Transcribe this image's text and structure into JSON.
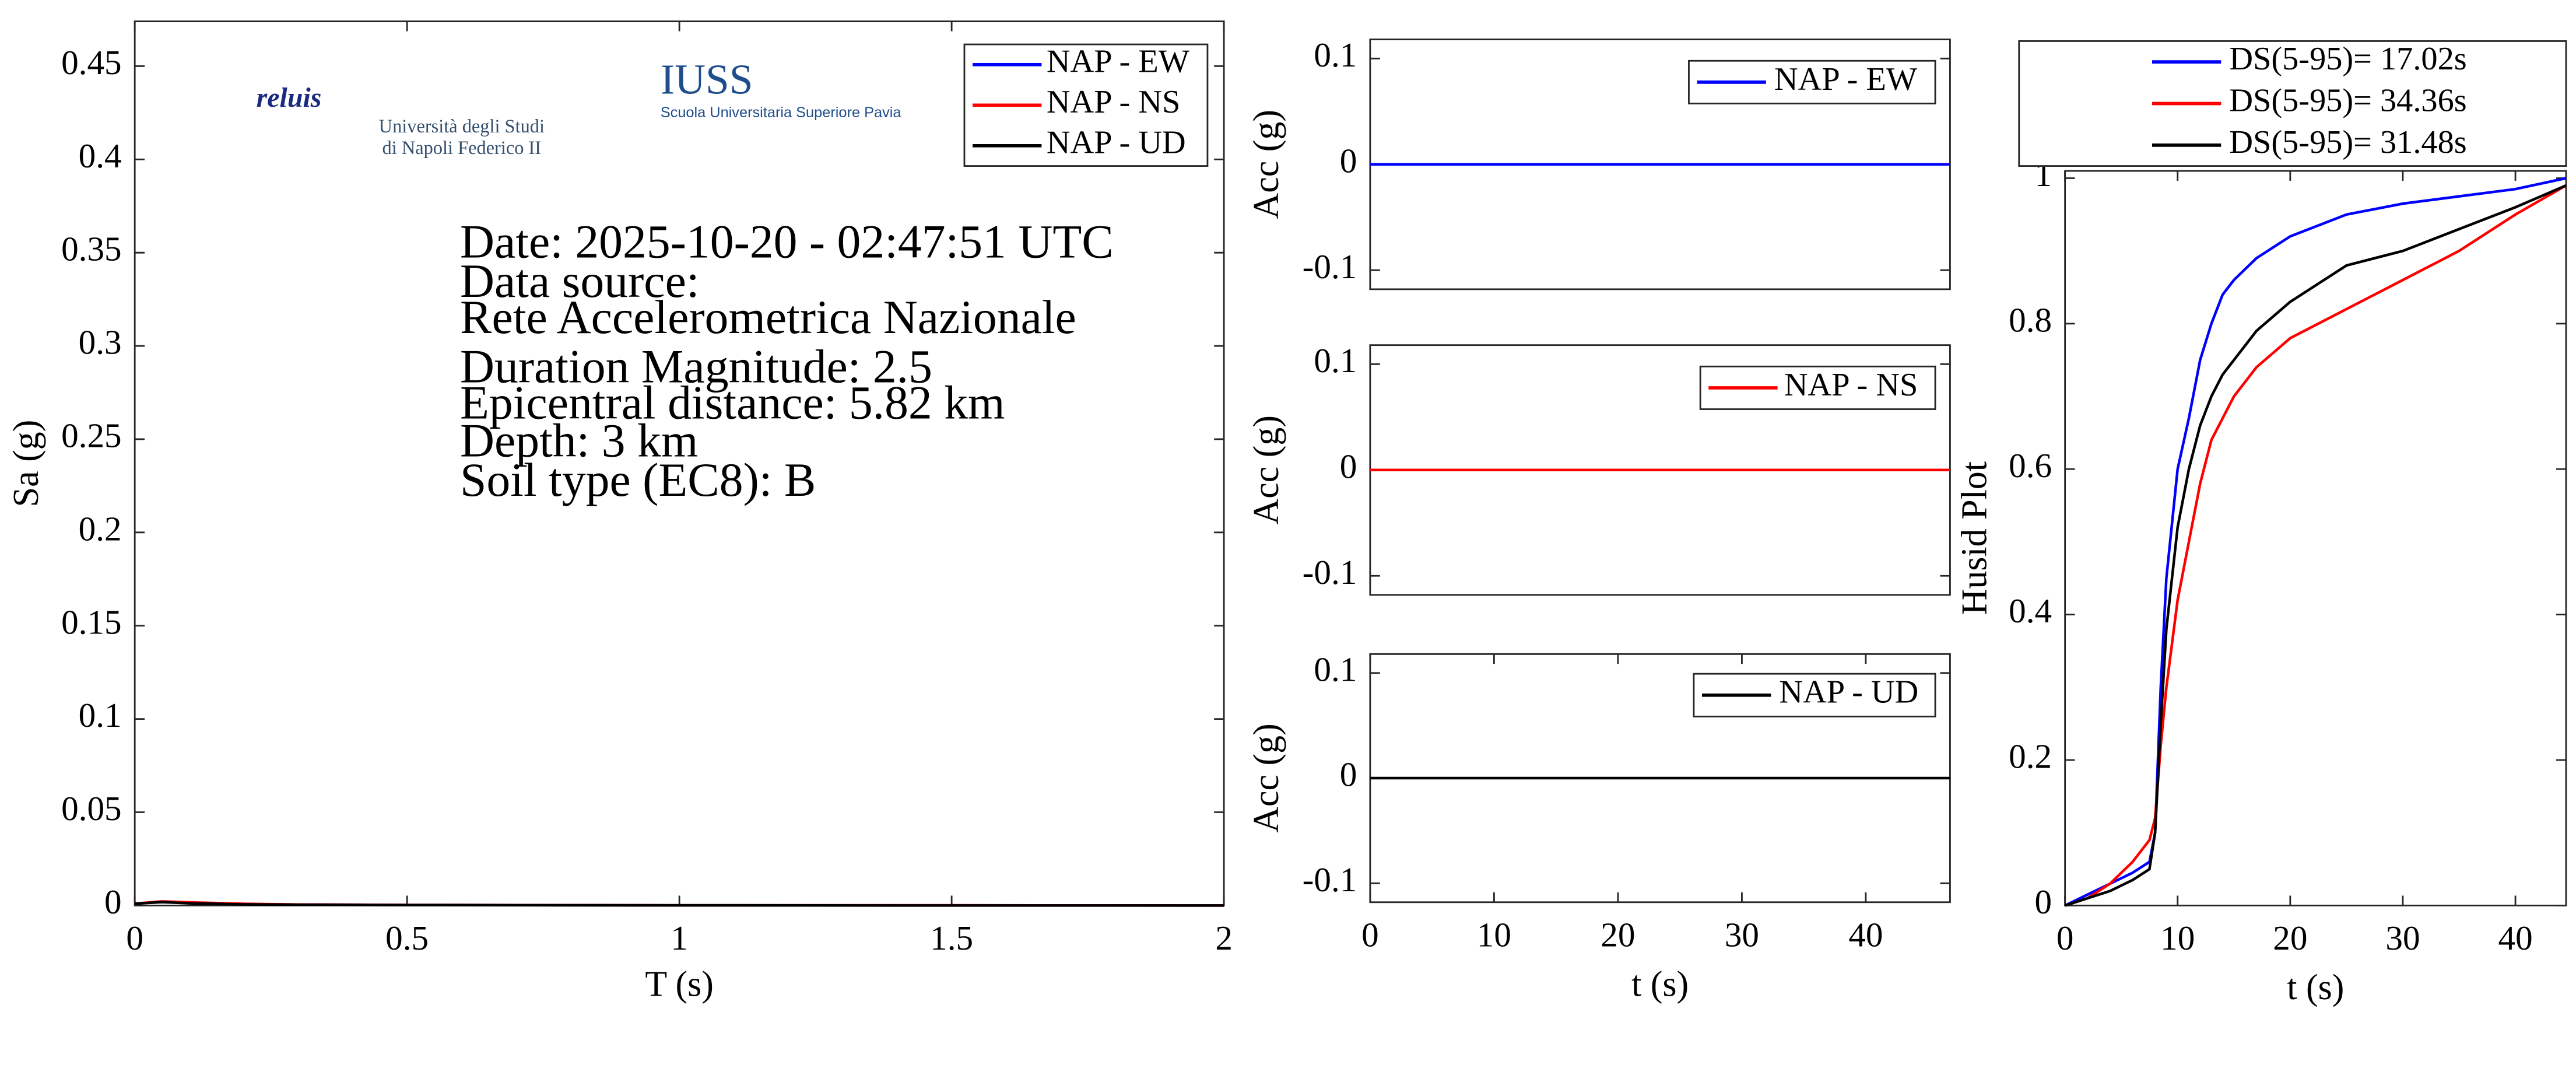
{
  "chart_data": [
    {
      "type": "line",
      "x": [
        0,
        0.05,
        0.1,
        0.2,
        0.3,
        0.5,
        1,
        1.5,
        2
      ],
      "series": [
        {
          "name": "NAP - EW",
          "color": "#0000ff",
          "values": [
            0.001,
            0.002,
            0.0015,
            0.0008,
            0.0005,
            0.0003,
            0.0001,
            0.0001,
            0
          ]
        },
        {
          "name": "NAP - NS",
          "color": "#ff0000",
          "values": [
            0.001,
            0.0022,
            0.0017,
            0.0009,
            0.0005,
            0.0003,
            0.0001,
            0.0001,
            0
          ]
        },
        {
          "name": "NAP - UD",
          "color": "#000000",
          "values": [
            0.001,
            0.0018,
            0.0012,
            0.0006,
            0.0004,
            0.0002,
            0.0001,
            0,
            0
          ]
        }
      ],
      "xlim": [
        0,
        2
      ],
      "xticks": [
        0,
        0.5,
        1,
        1.5,
        2
      ],
      "ylim": [
        0,
        0.474
      ],
      "yticks": [
        0,
        0.05,
        0.1,
        0.15,
        0.2,
        0.25,
        0.3,
        0.35,
        0.4,
        0.45
      ],
      "xlabel": "T (s)",
      "ylabel": "Sa (g)",
      "legend": "upper right",
      "annotations": [
        "Date: 2025-10-20 - 02:47:51 UTC",
        "Data source:",
        "Rete Accelerometrica Nazionale",
        "Duration Magnitude: 2.5",
        "Epicentral distance: 5.82 km",
        "Depth: 3 km",
        "Soil type (EC8): B"
      ],
      "logos": [
        "reluis",
        "Università degli Studi",
        "di Napoli Federico II",
        "IUSS",
        "Scuola Universitaria Superiore Pavia"
      ]
    },
    {
      "type": "line",
      "x": [
        0,
        10,
        20,
        30,
        40,
        46.8
      ],
      "series": [
        {
          "name": "NAP - EW",
          "color": "#0000ff",
          "values": [
            0,
            0,
            0,
            0,
            0,
            0
          ]
        }
      ],
      "xlim": [
        0,
        46.8
      ],
      "ylim": [
        -0.118,
        0.118
      ],
      "yticks": [
        -0.1,
        0,
        0.1
      ],
      "ylabel": "Acc (g)",
      "legend": "upper right"
    },
    {
      "type": "line",
      "x": [
        0,
        10,
        20,
        30,
        40,
        46.8
      ],
      "series": [
        {
          "name": "NAP - NS",
          "color": "#ff0000",
          "values": [
            0,
            0,
            0,
            0,
            0,
            0
          ]
        }
      ],
      "xlim": [
        0,
        46.8
      ],
      "ylim": [
        -0.118,
        0.118
      ],
      "yticks": [
        -0.1,
        0,
        0.1
      ],
      "ylabel": "Acc (g)",
      "legend": "upper right"
    },
    {
      "type": "line",
      "x": [
        0,
        10,
        20,
        30,
        40,
        46.8
      ],
      "series": [
        {
          "name": "NAP - UD",
          "color": "#000000",
          "values": [
            0,
            0,
            0,
            0,
            0,
            0
          ]
        }
      ],
      "xlim": [
        0,
        46.8
      ],
      "xticks": [
        0,
        10,
        20,
        30,
        40
      ],
      "ylim": [
        -0.118,
        0.118
      ],
      "yticks": [
        -0.1,
        0,
        0.1
      ],
      "xlabel": "t (s)",
      "ylabel": "Acc (g)",
      "legend": "upper right"
    },
    {
      "type": "line",
      "x": [
        0,
        2,
        4,
        6,
        7.5,
        8,
        8.5,
        9,
        10,
        11,
        12,
        13,
        14,
        15,
        17,
        20,
        25,
        30,
        35,
        40,
        44.5
      ],
      "series": [
        {
          "name": "DS(5-95)= 17.02s",
          "color": "#0000ff",
          "values": [
            0,
            0.015,
            0.03,
            0.045,
            0.06,
            0.1,
            0.3,
            0.45,
            0.6,
            0.67,
            0.75,
            0.8,
            0.84,
            0.86,
            0.89,
            0.92,
            0.95,
            0.965,
            0.975,
            0.985,
            1
          ]
        },
        {
          "name": "DS(5-95)= 34.36s",
          "color": "#ff0000",
          "values": [
            0,
            0.01,
            0.03,
            0.06,
            0.09,
            0.12,
            0.22,
            0.3,
            0.42,
            0.5,
            0.58,
            0.64,
            0.67,
            0.7,
            0.74,
            0.78,
            0.82,
            0.86,
            0.9,
            0.95,
            0.99
          ]
        },
        {
          "name": "DS(5-95)= 31.48s",
          "color": "#000000",
          "values": [
            0,
            0.01,
            0.02,
            0.035,
            0.05,
            0.1,
            0.25,
            0.38,
            0.52,
            0.6,
            0.66,
            0.7,
            0.73,
            0.75,
            0.79,
            0.83,
            0.88,
            0.9,
            0.93,
            0.96,
            0.99
          ]
        }
      ],
      "xlim": [
        0,
        44.5
      ],
      "xticks": [
        0,
        10,
        20,
        30,
        40
      ],
      "ylim": [
        0,
        1.01
      ],
      "yticks": [
        0,
        0.2,
        0.4,
        0.6,
        0.8,
        1
      ],
      "xlabel": "t (s)",
      "ylabel": "Husid Plot",
      "legend": "above"
    }
  ]
}
